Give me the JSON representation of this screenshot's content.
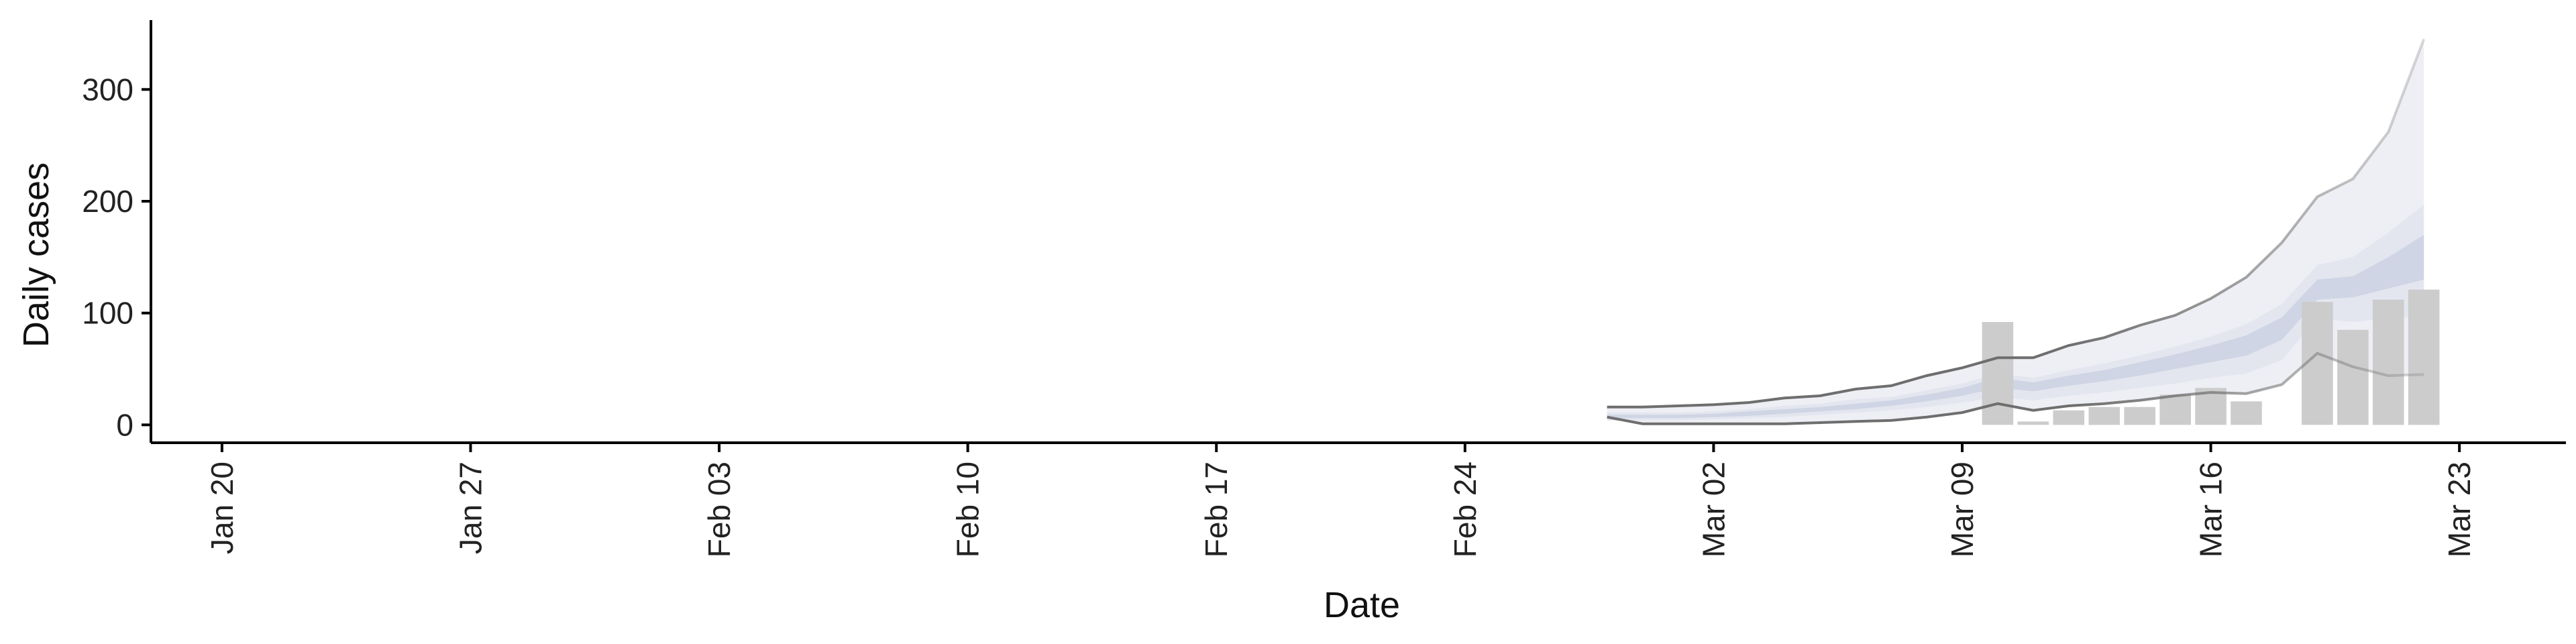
{
  "chart_data": {
    "type": "bar",
    "title": "",
    "xlabel": "Date",
    "ylabel": "Daily cases",
    "grid": false,
    "legend": "none",
    "x_axis": {
      "type": "date",
      "range": [
        "2020-01-18",
        "2020-03-26"
      ],
      "ticks": [
        {
          "date": "2020-01-20",
          "label": "Jan 20"
        },
        {
          "date": "2020-01-27",
          "label": "Jan 27"
        },
        {
          "date": "2020-02-03",
          "label": "Feb 03"
        },
        {
          "date": "2020-02-10",
          "label": "Feb 10"
        },
        {
          "date": "2020-02-17",
          "label": "Feb 17"
        },
        {
          "date": "2020-02-24",
          "label": "Feb 24"
        },
        {
          "date": "2020-03-02",
          "label": "Mar 02"
        },
        {
          "date": "2020-03-09",
          "label": "Mar 09"
        },
        {
          "date": "2020-03-16",
          "label": "Mar 16"
        },
        {
          "date": "2020-03-23",
          "label": "Mar 23"
        }
      ]
    },
    "y_axis": {
      "range": [
        -16,
        362
      ],
      "ticks": [
        {
          "value": 0,
          "label": "0"
        },
        {
          "value": 100,
          "label": "100"
        },
        {
          "value": 200,
          "label": "200"
        },
        {
          "value": 300,
          "label": "300"
        }
      ]
    },
    "colors": {
      "bars": "#cccccc",
      "outer_band": "#eeeff5",
      "mid_band": "#e3e6ef",
      "inner_band": "#cfd5e4",
      "bound_lines": "#6e6e6e",
      "axis": "#000000"
    },
    "dates": [
      "2020-02-28",
      "2020-02-29",
      "2020-03-01",
      "2020-03-02",
      "2020-03-03",
      "2020-03-04",
      "2020-03-05",
      "2020-03-06",
      "2020-03-07",
      "2020-03-08",
      "2020-03-09",
      "2020-03-10",
      "2020-03-11",
      "2020-03-12",
      "2020-03-13",
      "2020-03-14",
      "2020-03-15",
      "2020-03-16",
      "2020-03-17",
      "2020-03-18",
      "2020-03-19",
      "2020-03-20",
      "2020-03-21",
      "2020-03-22"
    ],
    "bars": [
      {
        "date": "2020-03-10",
        "value": 92
      },
      {
        "date": "2020-03-11",
        "value": 3
      },
      {
        "date": "2020-03-12",
        "value": 13
      },
      {
        "date": "2020-03-13",
        "value": 16
      },
      {
        "date": "2020-03-14",
        "value": 16
      },
      {
        "date": "2020-03-15",
        "value": 27
      },
      {
        "date": "2020-03-16",
        "value": 33
      },
      {
        "date": "2020-03-17",
        "value": 21
      },
      {
        "date": "2020-03-19",
        "value": 110
      },
      {
        "date": "2020-03-20",
        "value": 85
      },
      {
        "date": "2020-03-21",
        "value": 112
      },
      {
        "date": "2020-03-22",
        "value": 121
      }
    ],
    "bands": {
      "outer_lower": [
        7,
        1,
        1,
        1,
        1,
        1,
        2,
        3,
        4,
        7,
        11,
        19,
        13,
        17,
        19,
        22,
        26,
        29,
        28,
        36,
        64,
        52,
        44,
        45
      ],
      "outer_upper": [
        16,
        16,
        17,
        18,
        20,
        24,
        26,
        32,
        35,
        44,
        51,
        60,
        60,
        71,
        78,
        89,
        98,
        113,
        132,
        163,
        204,
        220,
        262,
        345
      ],
      "mid_lower": [
        4,
        4,
        4,
        5,
        6,
        7,
        9,
        11,
        13,
        16,
        20,
        25,
        22,
        26,
        29,
        33,
        37,
        42,
        46,
        58,
        95,
        92,
        95,
        97
      ],
      "mid_upper": [
        11,
        11,
        11,
        12,
        14,
        17,
        19,
        23,
        25,
        31,
        37,
        46,
        42,
        49,
        55,
        62,
        70,
        79,
        90,
        108,
        143,
        150,
        172,
        197
      ],
      "inner_lower": [
        6,
        6,
        6,
        7,
        8,
        10,
        12,
        14,
        17,
        21,
        26,
        33,
        30,
        35,
        39,
        44,
        50,
        56,
        62,
        76,
        112,
        114,
        122,
        130
      ],
      "inner_upper": [
        9,
        9,
        9,
        10,
        12,
        14,
        16,
        19,
        22,
        27,
        33,
        42,
        38,
        44,
        49,
        56,
        63,
        71,
        80,
        96,
        130,
        133,
        150,
        170
      ]
    }
  }
}
